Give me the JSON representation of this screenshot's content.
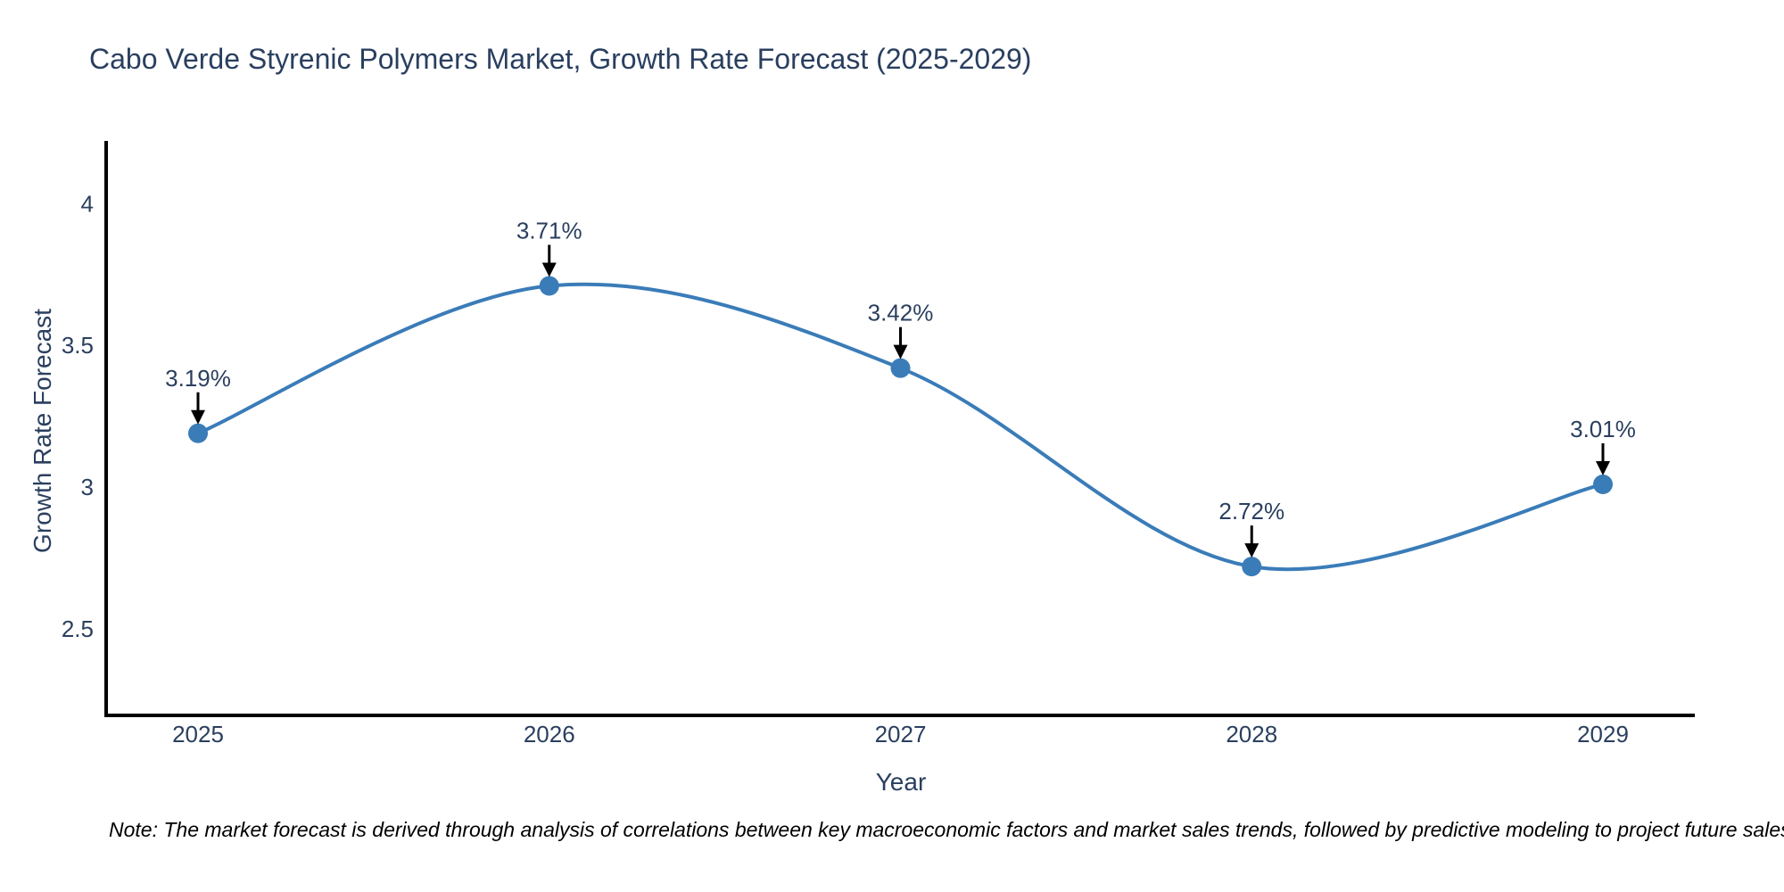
{
  "title": "Cabo Verde Styrenic Polymers Market, Growth Rate Forecast (2025-2029)",
  "note": "Note: The market forecast is derived through analysis of correlations between key macroeconomic factors and market sales trends, followed by predictive modeling to project future sales.",
  "chart_data": {
    "type": "line",
    "line_shape": "spline",
    "title": "Cabo Verde Styrenic Polymers Market, Growth Rate Forecast (2025-2029)",
    "xlabel": "Year",
    "ylabel": "Growth Rate Forecast",
    "categories": [
      "2025",
      "2026",
      "2027",
      "2028",
      "2029"
    ],
    "series": [
      {
        "name": "Growth Rate Forecast",
        "values": [
          3.19,
          3.71,
          3.42,
          2.72,
          3.01
        ],
        "point_labels": [
          "3.19%",
          "3.71%",
          "3.42%",
          "2.72%",
          "3.01%"
        ]
      }
    ],
    "yticks": [
      {
        "value": 2.5,
        "label": "2.5"
      },
      {
        "value": 3.0,
        "label": "3"
      },
      {
        "value": 3.5,
        "label": "3.5"
      },
      {
        "value": 4.0,
        "label": "4"
      }
    ],
    "ylim": [
      2.195,
      4.215
    ],
    "grid": false,
    "legend_position": "none",
    "colors": {
      "line": "#3a7cb8",
      "marker": "#3a7cb8",
      "axis_line": "#000000",
      "text": "#2a3f5f",
      "annotation_arrow": "#000000",
      "background": "#ffffff"
    }
  }
}
